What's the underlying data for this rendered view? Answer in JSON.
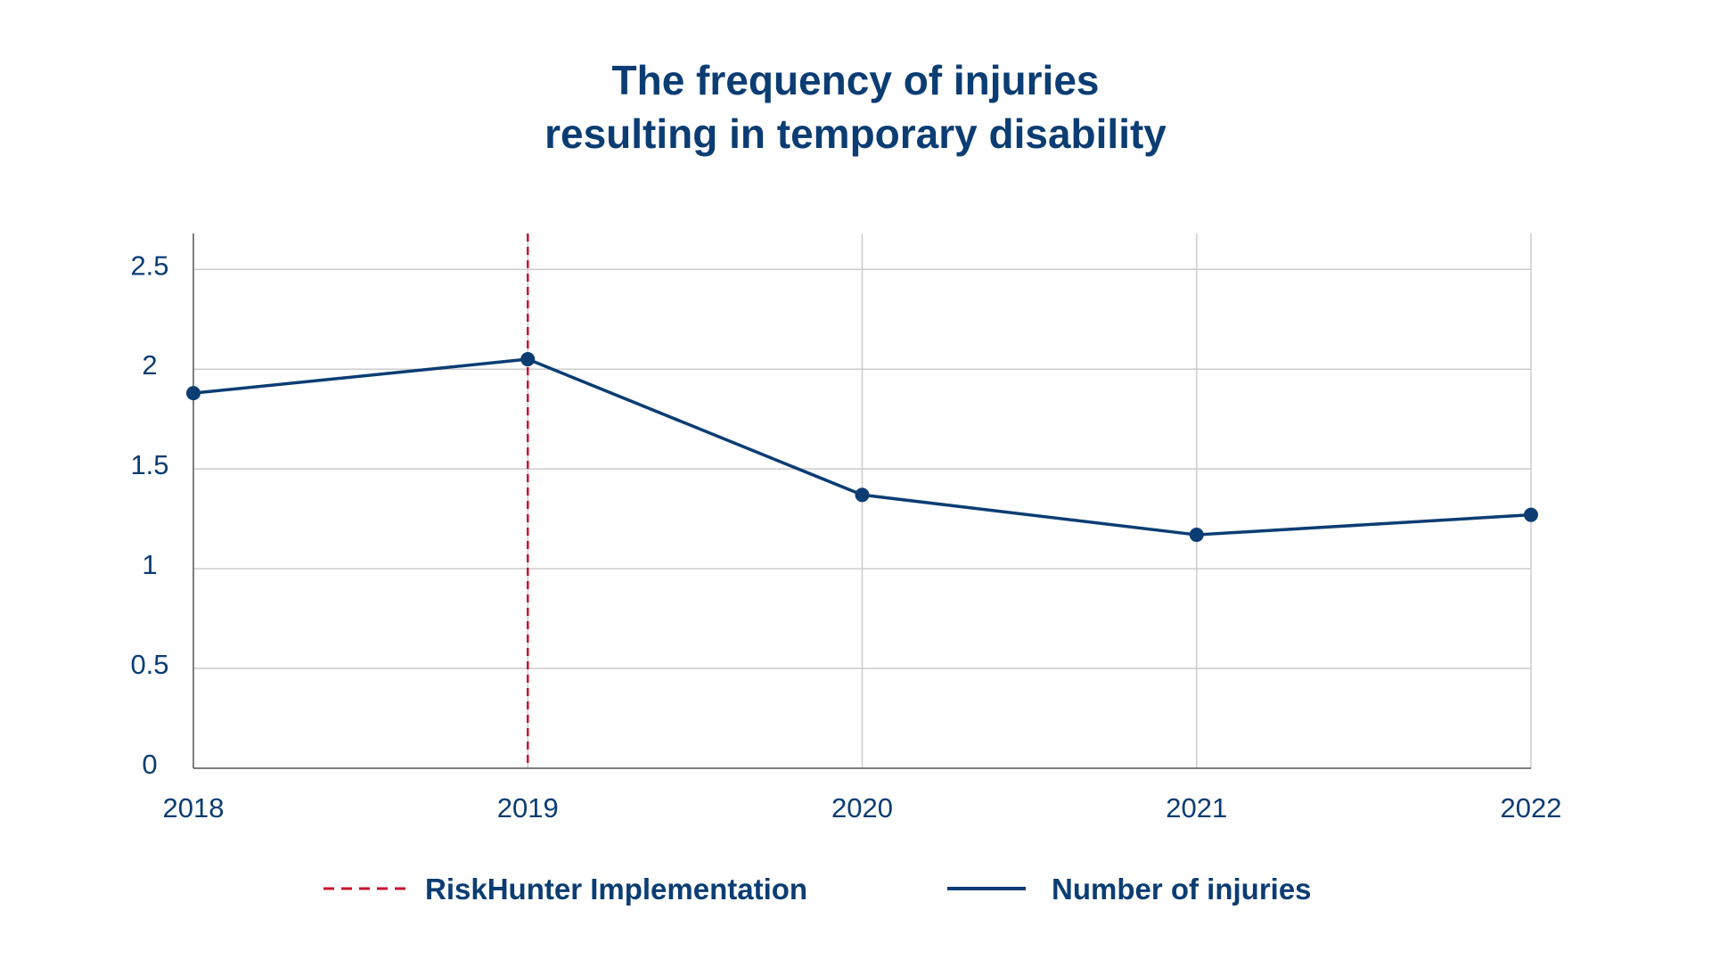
{
  "chart_data": {
    "type": "line",
    "title_lines": [
      "The frequency of injuries",
      "resulting in temporary disability"
    ],
    "x": [
      "2018",
      "2019",
      "2020",
      "2021",
      "2022"
    ],
    "y_ticks": [
      "0",
      "0.5",
      "1",
      "1.5",
      "2",
      "2.5"
    ],
    "ylim": [
      0,
      2.68
    ],
    "grid": true,
    "series": [
      {
        "name": "Number of injuries",
        "values": [
          1.88,
          2.05,
          1.37,
          1.17,
          1.27
        ],
        "color": "#0b3d73"
      }
    ],
    "annotations": [
      {
        "type": "vertical-dashed-line",
        "x": "2019",
        "label": "RiskHunter Implementation",
        "color": "#c8102e"
      }
    ],
    "legend": {
      "position": "bottom-center",
      "entries": [
        "RiskHunter Implementation",
        "Number of injuries"
      ]
    },
    "colors": {
      "text": "#0b3d73",
      "grid": "#cccccc",
      "axis": "#555555"
    }
  }
}
